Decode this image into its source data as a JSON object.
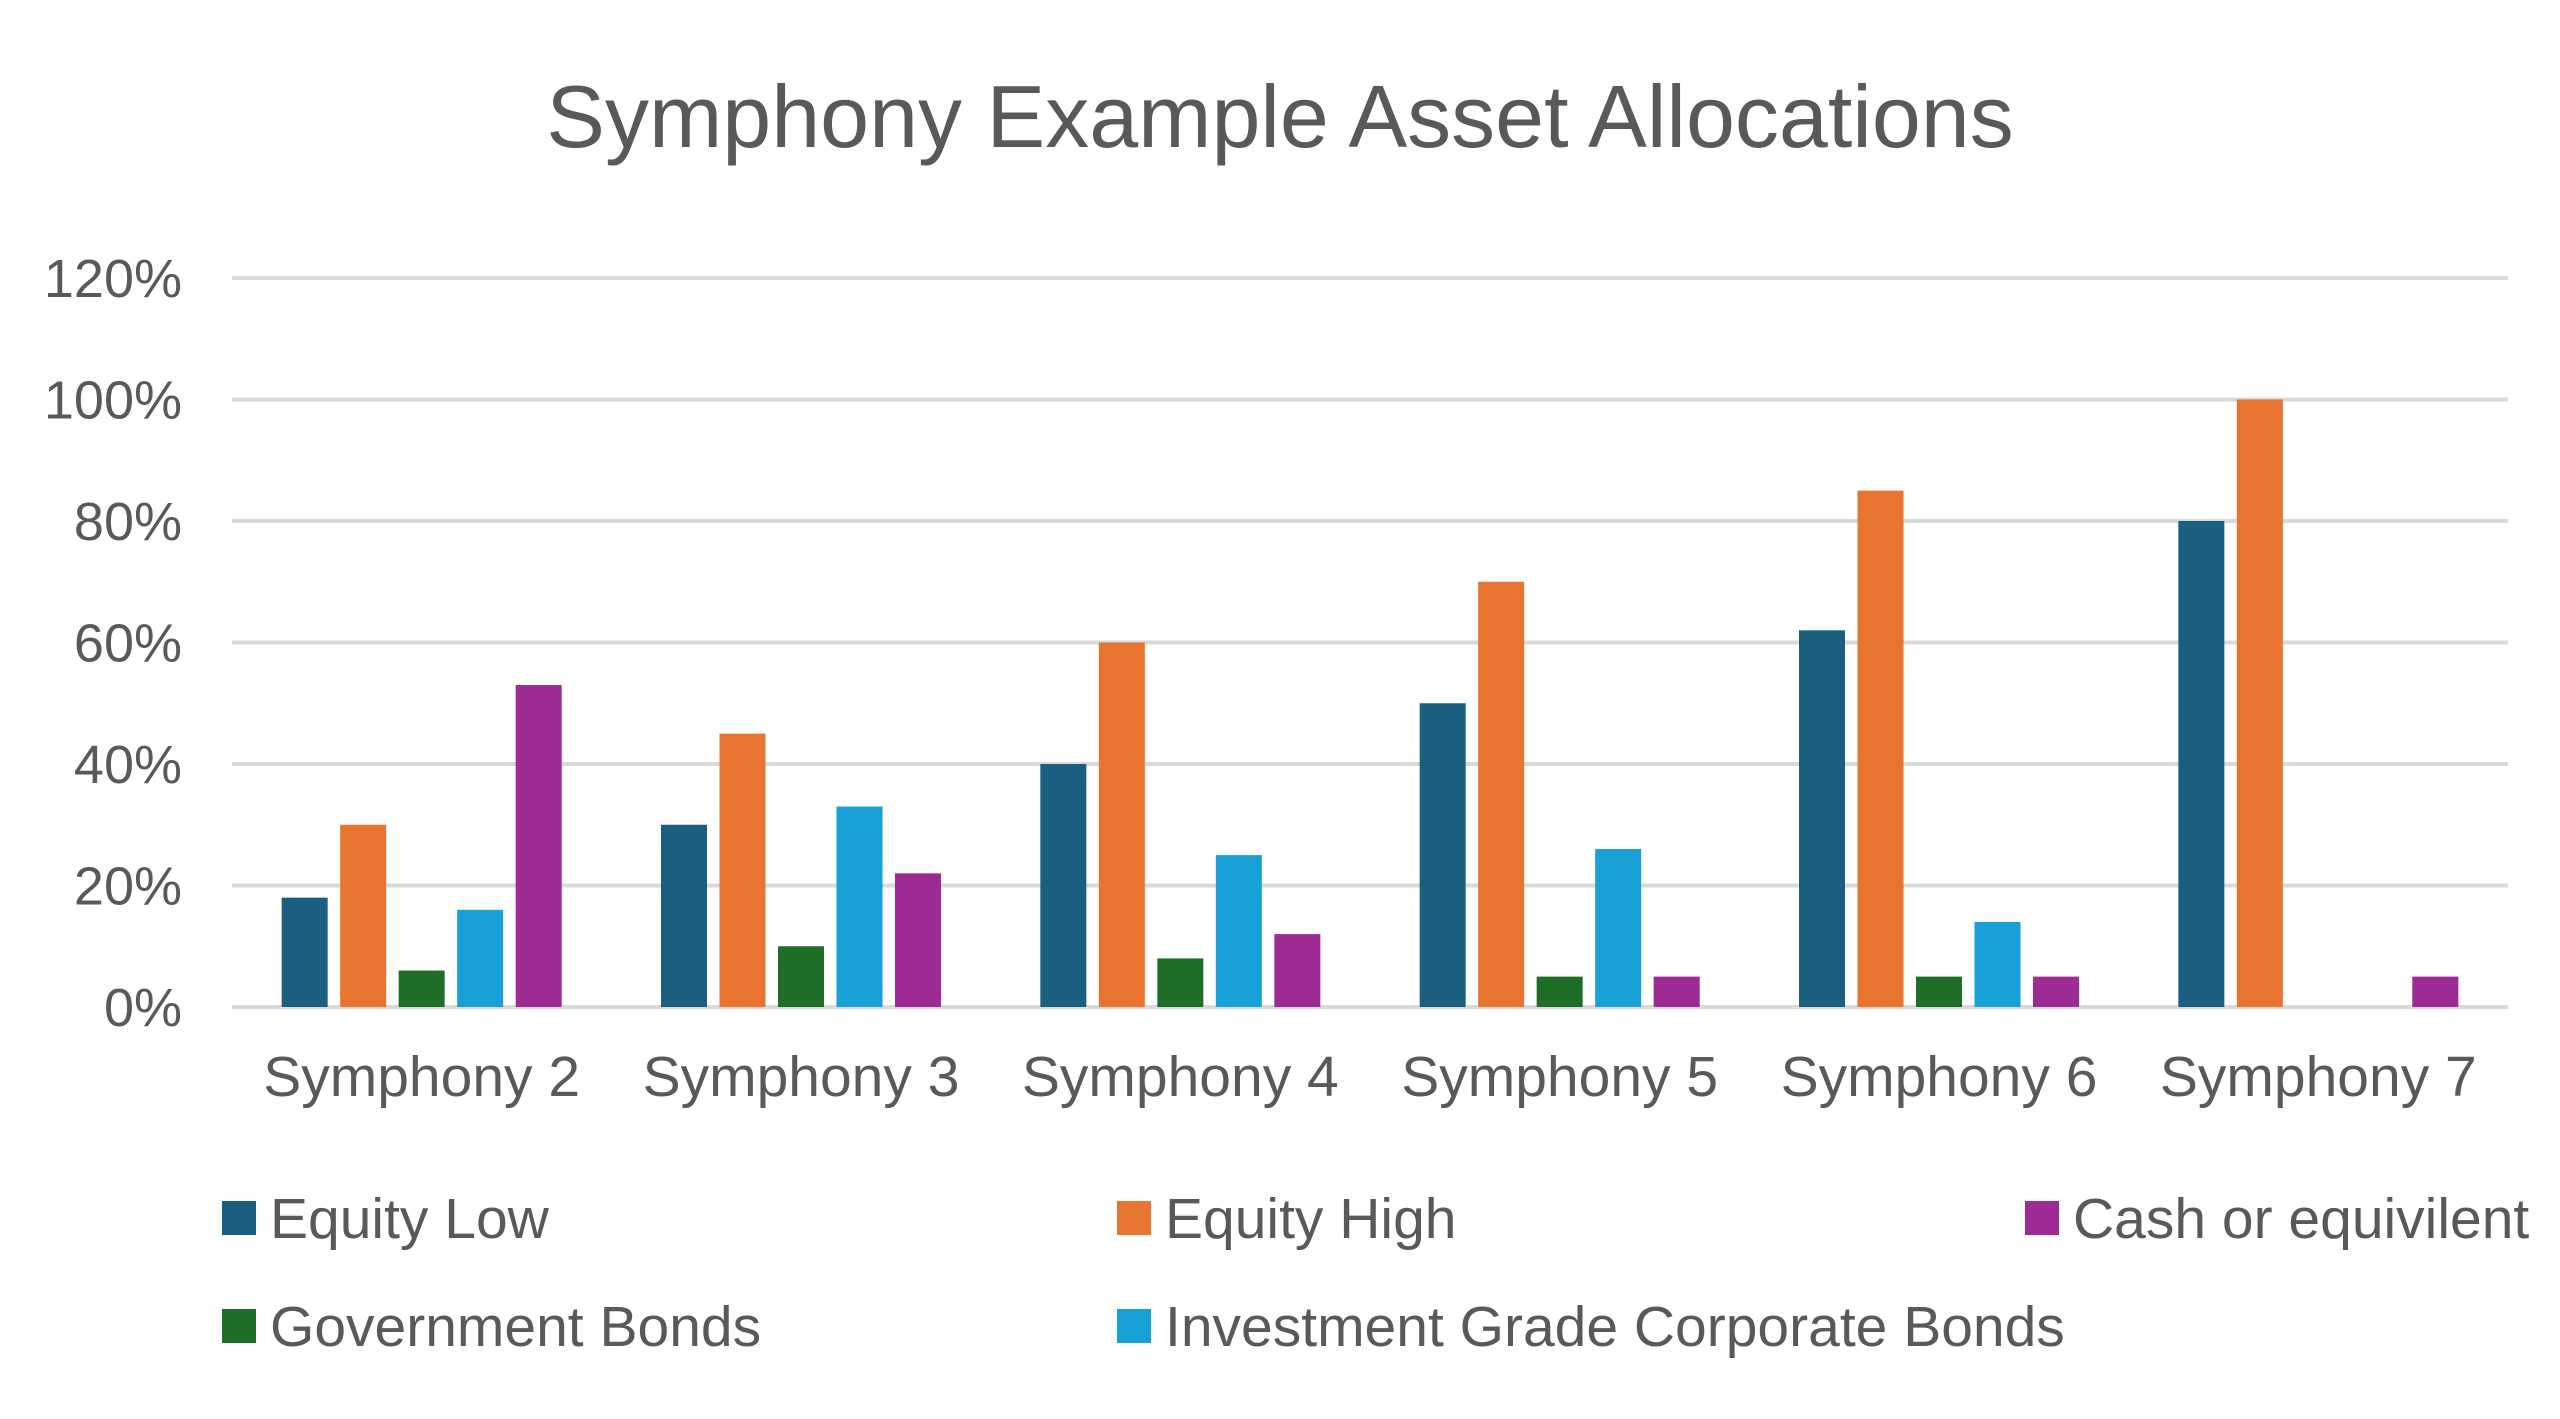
{
  "chart_data": {
    "type": "bar",
    "title": "Symphony Example Asset Allocations",
    "xlabel": "",
    "ylabel": "",
    "categories": [
      "Symphony 2",
      "Symphony 3",
      "Symphony 4",
      "Symphony 5",
      "Symphony 6",
      "Symphony 7"
    ],
    "ylim": [
      0,
      1.2
    ],
    "yticks": [
      0,
      0.2,
      0.4,
      0.6,
      0.8,
      1.0,
      1.2
    ],
    "ytick_labels": [
      "0%",
      "20%",
      "40%",
      "60%",
      "80%",
      "100%",
      "120%"
    ],
    "grid": true,
    "legend_position": "bottom",
    "series": [
      {
        "name": "Equity Low",
        "color": "#1a5f80",
        "values": [
          0.18,
          0.3,
          0.4,
          0.5,
          0.62,
          0.8
        ]
      },
      {
        "name": "Equity High",
        "color": "#e8742f",
        "values": [
          0.3,
          0.45,
          0.6,
          0.7,
          0.85,
          1.0
        ]
      },
      {
        "name": "Government Bonds",
        "color": "#1e6e28",
        "values": [
          0.06,
          0.1,
          0.08,
          0.05,
          0.05,
          0
        ]
      },
      {
        "name": "Investment Grade Corporate Bonds",
        "color": "#17a1d6",
        "values": [
          0.16,
          0.33,
          0.25,
          0.26,
          0.14,
          0
        ]
      },
      {
        "name": "Cash or equivilent",
        "color": "#9e2a94",
        "values": [
          0.53,
          0.22,
          0.12,
          0.05,
          0.05,
          0.05
        ]
      }
    ],
    "legend_order": [
      0,
      1,
      4,
      2,
      3
    ]
  }
}
